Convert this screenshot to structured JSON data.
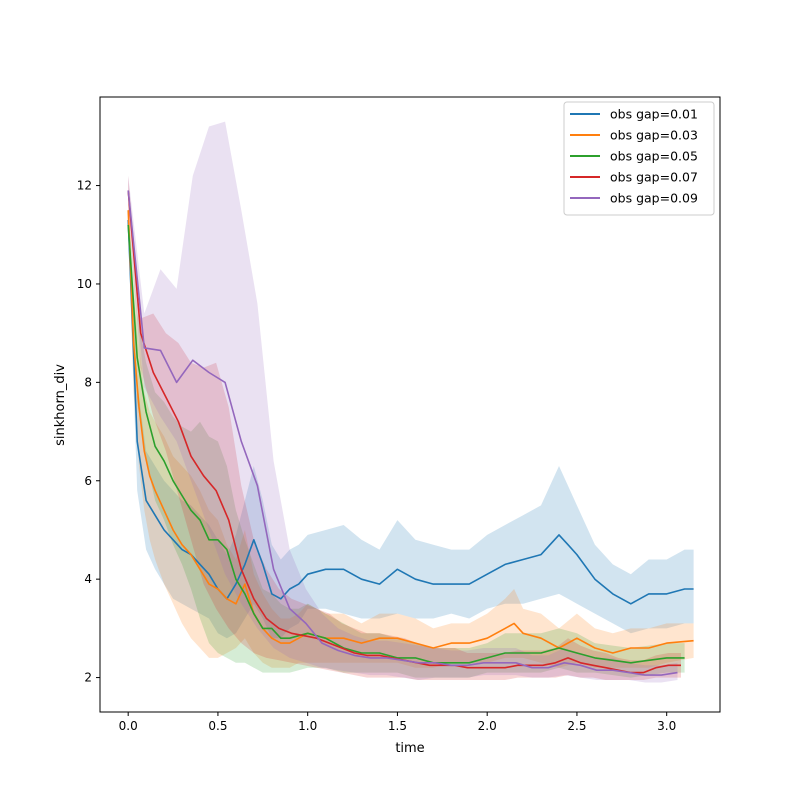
{
  "chart_data": {
    "type": "line",
    "title": "",
    "xlabel": "time",
    "ylabel": "sinkhorn_div",
    "xlim": [
      -0.157,
      3.297
    ],
    "ylim": [
      1.3,
      13.8
    ],
    "xticks": [
      0.0,
      0.5,
      1.0,
      1.5,
      2.0,
      2.5,
      3.0
    ],
    "xtick_labels": [
      "0.0",
      "0.5",
      "1.0",
      "1.5",
      "2.0",
      "2.5",
      "3.0"
    ],
    "yticks": [
      2,
      4,
      6,
      8,
      10,
      12
    ],
    "ytick_labels": [
      "2",
      "4",
      "6",
      "8",
      "10",
      "12"
    ],
    "legend_position": "top-right",
    "grid": false,
    "series": [
      {
        "name": "obs gap=0.01",
        "color": "#1f77b4",
        "x": [
          0.0,
          0.05,
          0.1,
          0.15,
          0.2,
          0.25,
          0.3,
          0.35,
          0.4,
          0.45,
          0.5,
          0.55,
          0.6,
          0.65,
          0.7,
          0.75,
          0.8,
          0.85,
          0.9,
          0.95,
          1.0,
          1.1,
          1.2,
          1.3,
          1.4,
          1.5,
          1.6,
          1.7,
          1.8,
          1.9,
          2.0,
          2.1,
          2.2,
          2.3,
          2.4,
          2.45,
          2.5,
          2.6,
          2.7,
          2.8,
          2.9,
          3.0,
          3.1,
          3.15
        ],
        "y": [
          11.3,
          6.8,
          5.6,
          5.3,
          5.0,
          4.8,
          4.6,
          4.5,
          4.3,
          4.1,
          3.8,
          3.6,
          3.9,
          4.3,
          4.8,
          4.3,
          3.7,
          3.6,
          3.8,
          3.9,
          4.1,
          4.2,
          4.2,
          4.0,
          3.9,
          4.2,
          4.0,
          3.9,
          3.9,
          3.9,
          4.1,
          4.3,
          4.4,
          4.5,
          4.9,
          4.7,
          4.5,
          4.0,
          3.7,
          3.5,
          3.7,
          3.7,
          3.8,
          3.8
        ],
        "lower": [
          11.0,
          5.8,
          4.6,
          4.2,
          3.9,
          3.6,
          3.5,
          3.4,
          3.3,
          3.2,
          2.9,
          2.8,
          2.9,
          3.2,
          3.5,
          3.2,
          2.8,
          2.8,
          3.0,
          3.1,
          3.4,
          3.4,
          3.3,
          3.2,
          3.2,
          3.3,
          3.2,
          3.2,
          3.3,
          3.2,
          3.4,
          3.5,
          3.5,
          3.6,
          3.7,
          3.6,
          3.5,
          3.3,
          3.1,
          2.9,
          3.0,
          3.0,
          3.1,
          3.1
        ],
        "upper": [
          11.6,
          8.0,
          6.6,
          6.3,
          6.0,
          5.8,
          5.6,
          5.5,
          5.3,
          5.1,
          4.8,
          4.5,
          4.9,
          5.6,
          6.3,
          5.6,
          4.7,
          4.4,
          4.6,
          4.7,
          4.9,
          5.0,
          5.1,
          4.8,
          4.6,
          5.2,
          4.8,
          4.7,
          4.6,
          4.6,
          4.9,
          5.1,
          5.3,
          5.5,
          6.3,
          5.9,
          5.5,
          4.7,
          4.3,
          4.1,
          4.4,
          4.4,
          4.6,
          4.6
        ]
      },
      {
        "name": "obs gap=0.03",
        "color": "#ff7f0e",
        "x": [
          0.0,
          0.03,
          0.06,
          0.09,
          0.12,
          0.15,
          0.2,
          0.25,
          0.3,
          0.35,
          0.4,
          0.45,
          0.5,
          0.55,
          0.6,
          0.65,
          0.7,
          0.75,
          0.8,
          0.85,
          0.9,
          0.95,
          1.0,
          1.1,
          1.2,
          1.3,
          1.4,
          1.5,
          1.6,
          1.7,
          1.8,
          1.9,
          2.0,
          2.1,
          2.15,
          2.2,
          2.3,
          2.4,
          2.5,
          2.6,
          2.7,
          2.8,
          2.9,
          3.0,
          3.15
        ],
        "y": [
          11.5,
          8.8,
          7.5,
          6.6,
          6.1,
          5.8,
          5.4,
          5.0,
          4.7,
          4.5,
          4.2,
          3.9,
          3.8,
          3.6,
          3.5,
          3.9,
          3.3,
          3.0,
          2.8,
          2.7,
          2.7,
          2.8,
          2.9,
          2.8,
          2.8,
          2.7,
          2.8,
          2.8,
          2.7,
          2.6,
          2.7,
          2.7,
          2.8,
          3.0,
          3.1,
          2.9,
          2.8,
          2.6,
          2.8,
          2.6,
          2.5,
          2.6,
          2.6,
          2.7,
          2.75
        ],
        "lower": [
          11.2,
          7.8,
          6.3,
          5.4,
          4.8,
          4.4,
          3.9,
          3.5,
          3.1,
          2.8,
          2.6,
          2.4,
          2.4,
          2.5,
          2.6,
          2.8,
          2.5,
          2.3,
          2.2,
          2.2,
          2.2,
          2.3,
          2.3,
          2.3,
          2.3,
          2.3,
          2.3,
          2.3,
          2.2,
          2.2,
          2.3,
          2.3,
          2.3,
          2.4,
          2.4,
          2.4,
          2.3,
          2.2,
          2.3,
          2.2,
          2.2,
          2.2,
          2.2,
          2.3,
          2.4
        ],
        "upper": [
          11.8,
          9.8,
          8.7,
          7.8,
          7.4,
          7.2,
          6.9,
          6.5,
          6.3,
          6.1,
          5.8,
          5.4,
          5.2,
          4.7,
          4.4,
          5.0,
          4.1,
          3.7,
          3.4,
          3.2,
          3.2,
          3.3,
          3.5,
          3.3,
          3.3,
          3.1,
          3.3,
          3.3,
          3.2,
          3.0,
          3.1,
          3.1,
          3.3,
          3.6,
          3.8,
          3.4,
          3.3,
          3.0,
          3.3,
          3.0,
          2.9,
          3.0,
          3.0,
          3.1,
          3.1
        ]
      },
      {
        "name": "obs gap=0.05",
        "color": "#2ca02c",
        "x": [
          0.0,
          0.05,
          0.1,
          0.15,
          0.2,
          0.25,
          0.3,
          0.35,
          0.4,
          0.45,
          0.5,
          0.55,
          0.6,
          0.65,
          0.7,
          0.75,
          0.8,
          0.85,
          0.9,
          0.95,
          1.0,
          1.1,
          1.2,
          1.3,
          1.4,
          1.5,
          1.6,
          1.7,
          1.8,
          1.9,
          2.0,
          2.1,
          2.2,
          2.3,
          2.4,
          2.5,
          2.6,
          2.7,
          2.8,
          2.9,
          3.0,
          3.1
        ],
        "y": [
          11.2,
          8.5,
          7.4,
          6.7,
          6.4,
          6.0,
          5.7,
          5.4,
          5.2,
          4.8,
          4.8,
          4.6,
          4.0,
          3.7,
          3.3,
          3.0,
          3.0,
          2.8,
          2.8,
          2.85,
          2.9,
          2.8,
          2.6,
          2.5,
          2.5,
          2.4,
          2.4,
          2.3,
          2.3,
          2.3,
          2.4,
          2.5,
          2.5,
          2.5,
          2.6,
          2.5,
          2.4,
          2.35,
          2.3,
          2.35,
          2.4,
          2.4
        ],
        "lower": [
          10.9,
          7.6,
          6.4,
          5.6,
          5.2,
          4.7,
          4.3,
          3.8,
          3.2,
          2.7,
          2.5,
          2.4,
          2.3,
          2.3,
          2.2,
          2.1,
          2.1,
          2.1,
          2.1,
          2.15,
          2.2,
          2.2,
          2.1,
          2.1,
          2.1,
          2.1,
          2.0,
          2.0,
          2.0,
          2.0,
          2.1,
          2.1,
          2.1,
          2.1,
          2.2,
          2.1,
          2.1,
          2.05,
          2.0,
          2.05,
          2.1,
          2.1
        ],
        "upper": [
          11.5,
          9.4,
          8.4,
          7.8,
          7.6,
          7.3,
          7.1,
          7.0,
          7.2,
          6.9,
          6.8,
          6.3,
          5.4,
          4.8,
          4.3,
          3.8,
          3.7,
          3.5,
          3.4,
          3.4,
          3.5,
          3.3,
          3.1,
          2.9,
          2.9,
          2.8,
          2.7,
          2.6,
          2.6,
          2.6,
          2.7,
          2.9,
          2.9,
          2.9,
          3.0,
          2.9,
          2.7,
          2.65,
          2.6,
          2.65,
          2.7,
          2.7
        ]
      },
      {
        "name": "obs gap=0.07",
        "color": "#d62728",
        "x": [
          0.0,
          0.07,
          0.14,
          0.21,
          0.28,
          0.35,
          0.42,
          0.49,
          0.56,
          0.63,
          0.7,
          0.77,
          0.84,
          0.91,
          0.98,
          1.05,
          1.12,
          1.19,
          1.26,
          1.33,
          1.4,
          1.47,
          1.54,
          1.61,
          1.68,
          1.75,
          1.82,
          1.89,
          1.96,
          2.03,
          2.1,
          2.17,
          2.24,
          2.31,
          2.38,
          2.45,
          2.52,
          2.59,
          2.66,
          2.73,
          2.8,
          2.87,
          2.94,
          3.01,
          3.08
        ],
        "y": [
          11.9,
          9.0,
          8.2,
          7.7,
          7.2,
          6.5,
          6.1,
          5.8,
          5.2,
          4.2,
          3.6,
          3.2,
          3.0,
          2.9,
          2.85,
          2.8,
          2.7,
          2.6,
          2.5,
          2.45,
          2.45,
          2.4,
          2.35,
          2.3,
          2.25,
          2.25,
          2.25,
          2.2,
          2.2,
          2.2,
          2.2,
          2.25,
          2.25,
          2.25,
          2.3,
          2.4,
          2.3,
          2.25,
          2.2,
          2.15,
          2.1,
          2.1,
          2.2,
          2.25,
          2.25
        ],
        "lower": [
          11.6,
          8.3,
          7.3,
          6.6,
          5.7,
          4.8,
          3.9,
          3.4,
          3.0,
          2.7,
          2.5,
          2.4,
          2.35,
          2.3,
          2.25,
          2.2,
          2.15,
          2.1,
          2.05,
          2.0,
          2.0,
          2.0,
          2.0,
          1.95,
          1.95,
          1.95,
          1.95,
          1.95,
          1.95,
          1.95,
          1.95,
          2.0,
          2.0,
          2.0,
          2.0,
          2.05,
          2.0,
          2.0,
          1.95,
          1.95,
          1.95,
          1.95,
          2.0,
          2.0,
          2.0
        ],
        "upper": [
          12.2,
          9.3,
          9.4,
          9.0,
          8.8,
          8.4,
          8.3,
          8.4,
          7.5,
          5.9,
          4.8,
          4.2,
          3.8,
          3.6,
          3.5,
          3.4,
          3.3,
          3.1,
          3.0,
          2.9,
          2.9,
          2.85,
          2.8,
          2.7,
          2.6,
          2.6,
          2.6,
          2.5,
          2.5,
          2.5,
          2.5,
          2.55,
          2.55,
          2.55,
          2.6,
          2.8,
          2.65,
          2.55,
          2.5,
          2.4,
          2.35,
          2.35,
          2.45,
          2.5,
          2.5
        ]
      },
      {
        "name": "obs gap=0.09",
        "color": "#9467bd",
        "x": [
          0.0,
          0.09,
          0.18,
          0.27,
          0.36,
          0.45,
          0.54,
          0.63,
          0.72,
          0.81,
          0.9,
          0.99,
          1.08,
          1.17,
          1.26,
          1.35,
          1.44,
          1.53,
          1.62,
          1.71,
          1.8,
          1.89,
          1.98,
          2.07,
          2.16,
          2.25,
          2.34,
          2.43,
          2.52,
          2.61,
          2.7,
          2.79,
          2.88,
          2.97,
          3.06
        ],
        "y": [
          11.9,
          8.7,
          8.65,
          8.0,
          8.45,
          8.2,
          8.0,
          6.8,
          5.9,
          4.2,
          3.4,
          3.1,
          2.7,
          2.55,
          2.45,
          2.4,
          2.4,
          2.35,
          2.3,
          2.3,
          2.25,
          2.25,
          2.3,
          2.3,
          2.3,
          2.2,
          2.2,
          2.3,
          2.25,
          2.15,
          2.15,
          2.1,
          2.05,
          2.05,
          2.1
        ],
        "lower": [
          11.6,
          7.9,
          7.3,
          6.8,
          5.9,
          5.0,
          4.1,
          3.5,
          3.0,
          2.6,
          2.4,
          2.3,
          2.2,
          2.15,
          2.1,
          2.05,
          2.05,
          2.0,
          1.95,
          2.0,
          2.0,
          2.0,
          2.05,
          2.05,
          2.05,
          2.0,
          2.0,
          2.05,
          2.0,
          1.95,
          1.95,
          1.95,
          1.9,
          1.9,
          1.95
        ],
        "upper": [
          12.2,
          9.4,
          10.3,
          9.9,
          12.2,
          13.2,
          13.3,
          11.5,
          9.6,
          6.4,
          4.6,
          3.8,
          3.3,
          3.0,
          2.85,
          2.75,
          2.75,
          2.7,
          2.65,
          2.6,
          2.55,
          2.55,
          2.6,
          2.6,
          2.6,
          2.45,
          2.45,
          2.6,
          2.5,
          2.4,
          2.4,
          2.3,
          2.25,
          2.25,
          2.3
        ]
      }
    ]
  }
}
